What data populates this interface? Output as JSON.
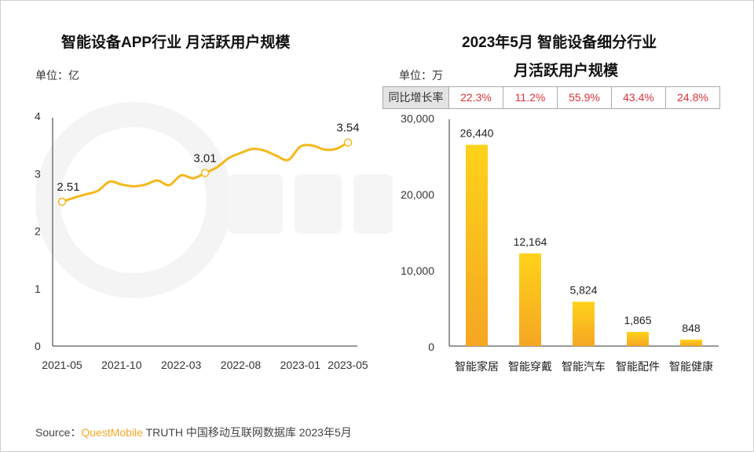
{
  "watermark": "QUESTMOBILE",
  "colors": {
    "line": "#f5b81c",
    "bar_top": "#ffd21a",
    "bar_bottom": "#f5a623",
    "growth_text": "#e0303a",
    "brand": "#f5a623"
  },
  "left": {
    "title": "智能设备APP行业 月活跃用户规模",
    "unit": "单位：亿"
  },
  "right": {
    "title_line1": "2023年5月 智能设备细分行业",
    "title_line2": "月活跃用户规模",
    "unit": "单位：万",
    "growth_header": "同比增长率",
    "growth": [
      "22.3%",
      "11.2%",
      "55.9%",
      "43.4%",
      "24.8%"
    ]
  },
  "source": {
    "prefix": "Source：",
    "brand": "QuestMobile",
    "rest": "TRUTH 中国移动互联网数据库 2023年5月"
  },
  "chart_data": [
    {
      "type": "line",
      "title": "智能设备APP行业 月活跃用户规模",
      "ylabel": "单位：亿",
      "ylim": [
        0,
        4
      ],
      "yticks": [
        "0",
        "1",
        "2",
        "3",
        "4"
      ],
      "xticks": [
        "2021-05",
        "2021-10",
        "2022-03",
        "2022-08",
        "2023-01",
        "2023-05"
      ],
      "x": [
        "2021-05",
        "2021-06",
        "2021-07",
        "2021-08",
        "2021-09",
        "2021-10",
        "2021-11",
        "2021-12",
        "2022-01",
        "2022-02",
        "2022-03",
        "2022-04",
        "2022-05",
        "2022-06",
        "2022-07",
        "2022-08",
        "2022-09",
        "2022-10",
        "2022-11",
        "2022-12",
        "2023-01",
        "2023-02",
        "2023-03",
        "2023-04",
        "2023-05"
      ],
      "values": [
        2.51,
        2.58,
        2.64,
        2.7,
        2.86,
        2.81,
        2.78,
        2.81,
        2.88,
        2.8,
        2.97,
        2.92,
        3.01,
        3.11,
        3.27,
        3.36,
        3.43,
        3.4,
        3.31,
        3.24,
        3.47,
        3.49,
        3.42,
        3.43,
        3.54
      ],
      "labels": [
        {
          "x": "2021-05",
          "text": "2.51"
        },
        {
          "x": "2022-05",
          "text": "3.01"
        },
        {
          "x": "2023-05",
          "text": "3.54"
        }
      ],
      "grid": false
    },
    {
      "type": "bar",
      "title": "2023年5月 智能设备细分行业 月活跃用户规模",
      "ylabel": "单位：万",
      "ylim": [
        0,
        30000
      ],
      "yticks": [
        "0",
        "10,000",
        "20,000",
        "30,000"
      ],
      "categories": [
        "智能家居",
        "智能穿戴",
        "智能汽车",
        "智能配件",
        "智能健康"
      ],
      "values": [
        26440,
        12164,
        5824,
        1865,
        848
      ],
      "value_labels": [
        "26,440",
        "12,164",
        "5,824",
        "1,865",
        "848"
      ],
      "grid": false
    }
  ]
}
